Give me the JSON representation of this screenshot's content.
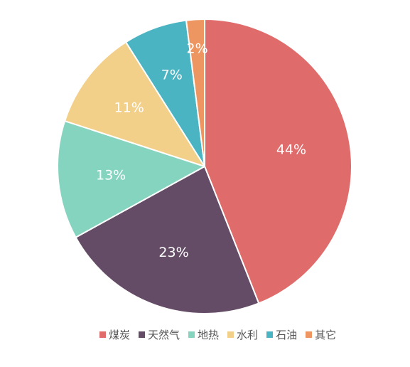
{
  "chart_data": {
    "type": "pie",
    "categories": [
      "煤炭",
      "天然气",
      "地热",
      "水利",
      "石油",
      "其它"
    ],
    "values": [
      44,
      23,
      13,
      11,
      7,
      2
    ],
    "data_labels": [
      "44%",
      "23%",
      "13%",
      "11%",
      "7%",
      "2%"
    ],
    "colors": [
      "#e06b6b",
      "#654c66",
      "#84d4c0",
      "#f3d089",
      "#4ab4c3",
      "#ee9661"
    ],
    "start_angle_deg": 0,
    "direction": "clockwise",
    "legend_position": "bottom",
    "title": ""
  }
}
